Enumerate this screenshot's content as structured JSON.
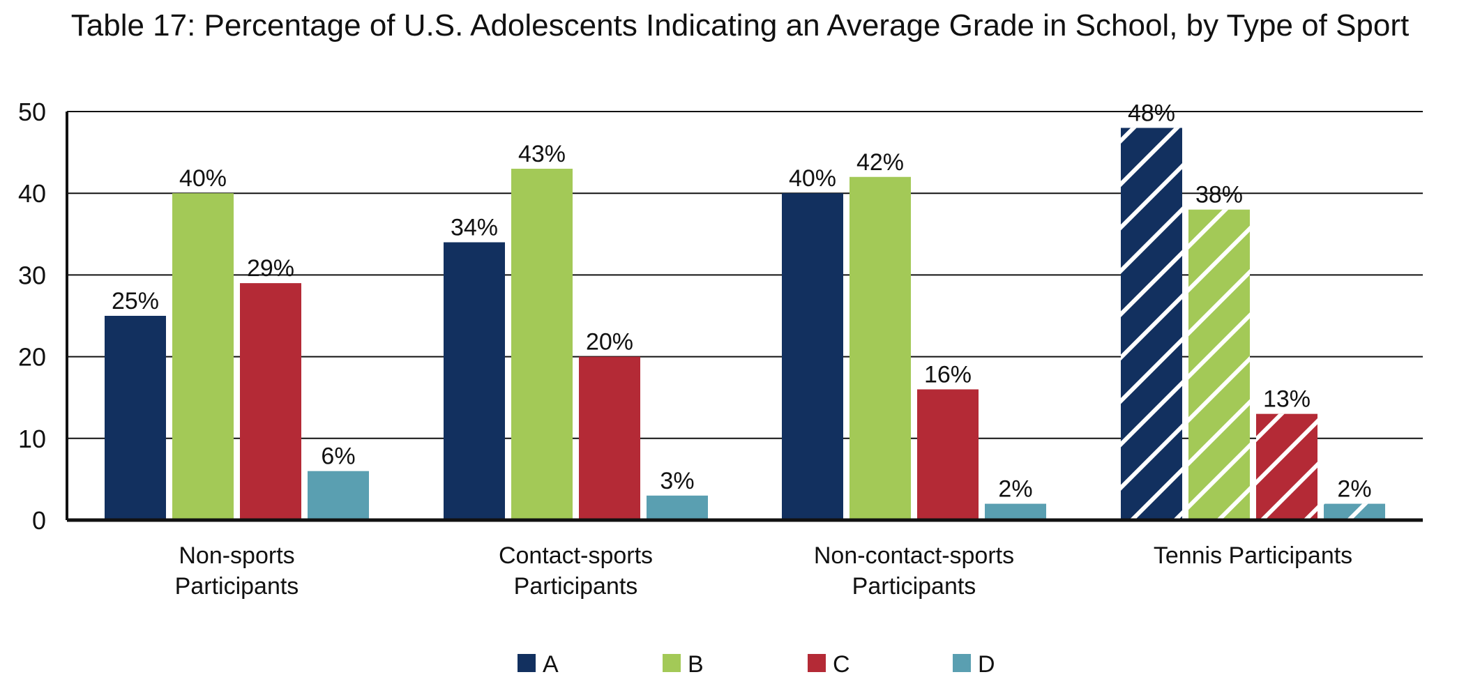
{
  "chart_data": {
    "type": "bar",
    "title": "Table 17: Percentage of U.S. Adolescents Indicating an Average Grade in School, by Type of Sport",
    "xlabel": "",
    "ylabel": "",
    "ylim": [
      0,
      50
    ],
    "yticks": [
      0,
      10,
      20,
      30,
      40,
      50
    ],
    "grid": true,
    "legend_position": "bottom",
    "categories": [
      [
        "Non-sports",
        "Participants"
      ],
      [
        "Contact-sports",
        "Participants"
      ],
      [
        "Non-contact-sports",
        "Participants"
      ],
      [
        "Tennis Participants"
      ]
    ],
    "hatched_categories": [
      3
    ],
    "series": [
      {
        "name": "A",
        "color": "#12305f",
        "values": [
          25,
          34,
          40,
          48
        ],
        "labels": [
          "25%",
          "34%",
          "40%",
          "48%"
        ]
      },
      {
        "name": "B",
        "color": "#a3c957",
        "values": [
          40,
          43,
          42,
          38
        ],
        "labels": [
          "40%",
          "43%",
          "42%",
          "38%"
        ]
      },
      {
        "name": "C",
        "color": "#b42a36",
        "values": [
          29,
          20,
          16,
          13
        ],
        "labels": [
          "29%",
          "20%",
          "16%",
          "13%"
        ]
      },
      {
        "name": "D",
        "color": "#5a9fb1",
        "values": [
          6,
          3,
          2,
          2
        ],
        "labels": [
          "6%",
          "3%",
          "2%",
          "2%"
        ]
      }
    ]
  }
}
